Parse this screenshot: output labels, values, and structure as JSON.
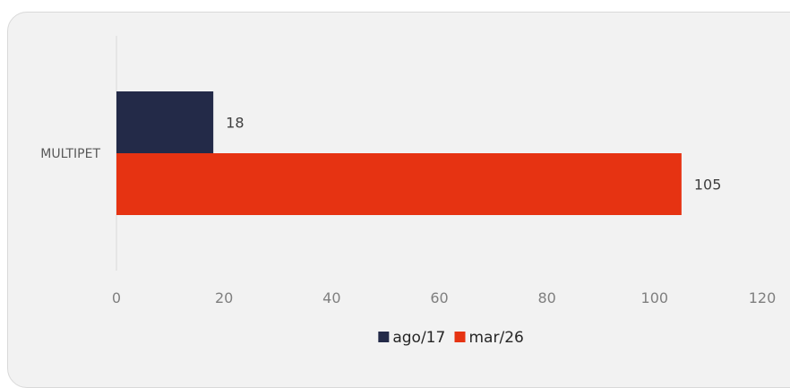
{
  "chart_data": {
    "type": "bar",
    "orientation": "horizontal",
    "categories": [
      "MULTIPET"
    ],
    "series": [
      {
        "name": "ago/17",
        "values": [
          18
        ],
        "color": "#232a48"
      },
      {
        "name": "mar/26",
        "values": [
          105
        ],
        "color": "#e63312"
      }
    ],
    "xlim": [
      0,
      120
    ],
    "xticks": [
      "0",
      "20",
      "40",
      "60",
      "80",
      "100",
      "120"
    ],
    "legend": "bottom",
    "grid": false
  }
}
